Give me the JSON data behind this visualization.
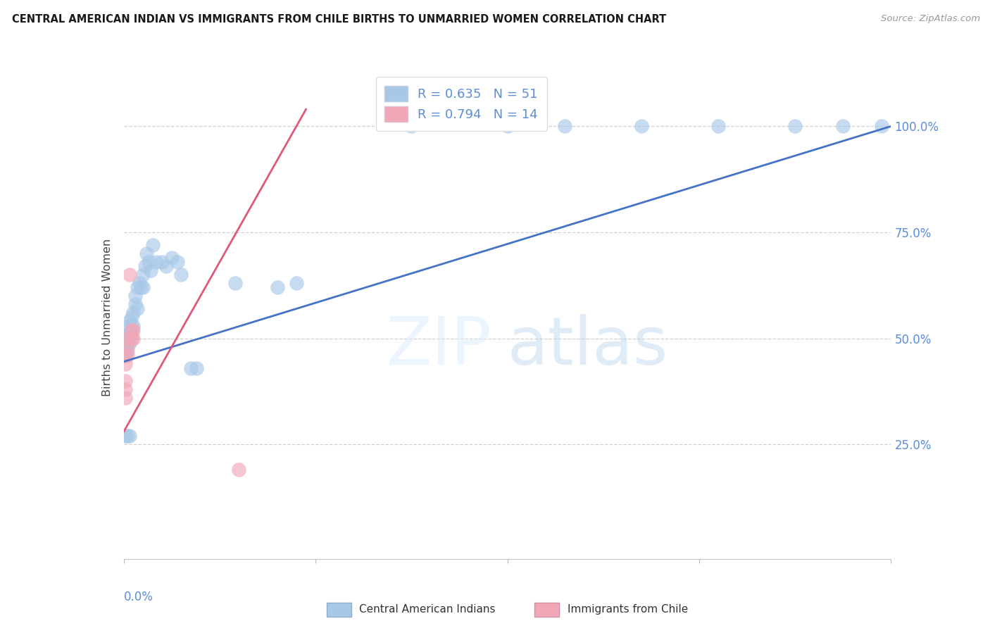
{
  "title": "CENTRAL AMERICAN INDIAN VS IMMIGRANTS FROM CHILE BIRTHS TO UNMARRIED WOMEN CORRELATION CHART",
  "source": "Source: ZipAtlas.com",
  "ylabel": "Births to Unmarried Women",
  "xlim": [
    0.0,
    0.4
  ],
  "ylim": [
    -0.02,
    1.12
  ],
  "legend_blue_r": "R = 0.635",
  "legend_blue_n": "N = 51",
  "legend_pink_r": "R = 0.794",
  "legend_pink_n": "N = 14",
  "blue_color": "#a8c8e8",
  "pink_color": "#f0a8b8",
  "blue_line_color": "#4472c4",
  "pink_line_color": "#e05878",
  "blue_scatter_x": [
    0.001,
    0.001,
    0.001,
    0.001,
    0.002,
    0.002,
    0.002,
    0.002,
    0.003,
    0.003,
    0.003,
    0.004,
    0.004,
    0.004,
    0.005,
    0.005,
    0.006,
    0.006,
    0.007,
    0.007,
    0.008,
    0.009,
    0.01,
    0.01,
    0.011,
    0.012,
    0.013,
    0.014,
    0.015,
    0.017,
    0.02,
    0.022,
    0.025,
    0.028,
    0.03,
    0.035,
    0.038,
    0.001,
    0.002,
    0.003,
    0.058,
    0.08,
    0.09,
    0.15,
    0.2,
    0.23,
    0.27,
    0.31,
    0.35,
    0.375,
    0.395
  ],
  "blue_scatter_y": [
    0.46,
    0.47,
    0.49,
    0.51,
    0.47,
    0.49,
    0.51,
    0.53,
    0.49,
    0.51,
    0.54,
    0.51,
    0.53,
    0.55,
    0.56,
    0.53,
    0.58,
    0.6,
    0.62,
    0.57,
    0.63,
    0.62,
    0.65,
    0.62,
    0.67,
    0.7,
    0.68,
    0.66,
    0.72,
    0.68,
    0.68,
    0.67,
    0.69,
    0.68,
    0.65,
    0.43,
    0.43,
    0.27,
    0.27,
    0.27,
    0.63,
    0.62,
    0.63,
    1.0,
    1.0,
    1.0,
    1.0,
    1.0,
    1.0,
    1.0,
    1.0
  ],
  "pink_scatter_x": [
    0.001,
    0.001,
    0.001,
    0.001,
    0.001,
    0.002,
    0.002,
    0.002,
    0.003,
    0.004,
    0.004,
    0.005,
    0.005,
    0.06
  ],
  "pink_scatter_y": [
    0.44,
    0.46,
    0.4,
    0.36,
    0.38,
    0.46,
    0.48,
    0.5,
    0.65,
    0.5,
    0.52,
    0.5,
    0.52,
    0.19
  ],
  "blue_line_x": [
    0.0,
    0.4
  ],
  "blue_line_y": [
    0.445,
    1.0
  ],
  "pink_line_x": [
    0.0,
    0.095
  ],
  "pink_line_y": [
    0.28,
    1.04
  ],
  "xtick_positions": [
    0.0,
    0.1,
    0.2,
    0.3,
    0.4
  ],
  "ytick_vals": [
    0.25,
    0.5,
    0.75,
    1.0
  ],
  "ytick_labels": [
    "25.0%",
    "50.0%",
    "75.0%",
    "100.0%"
  ],
  "grid_color": "#d0d0d0",
  "watermark_color1": "#ddeeff",
  "watermark_color2": "#c0d8f0"
}
